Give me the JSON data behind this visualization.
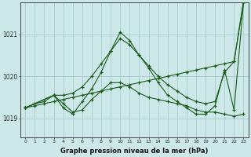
{
  "title": "Graphe pression niveau de la mer (hPa)",
  "background_color": "#cce8e8",
  "grid_color": "#aacccc",
  "line_color": "#1a5c1a",
  "xlim": [
    -0.5,
    23.5
  ],
  "ylim": [
    1018.55,
    1021.75
  ],
  "yticks": [
    1019,
    1020,
    1021
  ],
  "xticks": [
    0,
    1,
    2,
    3,
    4,
    5,
    6,
    7,
    8,
    9,
    10,
    11,
    12,
    13,
    14,
    15,
    16,
    17,
    18,
    19,
    20,
    21,
    22,
    23
  ],
  "series1_x": [
    0,
    1,
    2,
    3,
    4,
    5,
    6,
    7,
    8,
    9,
    10,
    11,
    12,
    13,
    14,
    15,
    16,
    17,
    18,
    19,
    20,
    21,
    22,
    23
  ],
  "series1_y": [
    1019.25,
    1019.3,
    1019.35,
    1019.4,
    1019.45,
    1019.5,
    1019.55,
    1019.6,
    1019.65,
    1019.7,
    1019.75,
    1019.8,
    1019.85,
    1019.9,
    1019.95,
    1020.0,
    1020.05,
    1020.1,
    1020.15,
    1020.2,
    1020.25,
    1020.3,
    1020.35,
    1021.75
  ],
  "series2_x": [
    0,
    3,
    4,
    5,
    6,
    7,
    8,
    9,
    10,
    11,
    12,
    13,
    14,
    15,
    16,
    17,
    18,
    19,
    20,
    21,
    22,
    23
  ],
  "series2_y": [
    1019.25,
    1019.55,
    1019.25,
    1019.1,
    1019.4,
    1019.7,
    1020.1,
    1020.6,
    1021.05,
    1020.85,
    1020.5,
    1020.2,
    1019.85,
    1019.55,
    1019.4,
    1019.25,
    1019.1,
    1019.1,
    1019.3,
    1020.15,
    1019.2,
    1021.75
  ],
  "series3_x": [
    0,
    1,
    2,
    3,
    4,
    5,
    6,
    7,
    8,
    9,
    10,
    11,
    12,
    13,
    14,
    15,
    16,
    17,
    18,
    19,
    20,
    21,
    22,
    23
  ],
  "series3_y": [
    1019.25,
    1019.35,
    1019.4,
    1019.55,
    1019.35,
    1019.15,
    1019.2,
    1019.45,
    1019.65,
    1019.85,
    1019.85,
    1019.75,
    1019.6,
    1019.5,
    1019.45,
    1019.4,
    1019.35,
    1019.3,
    1019.2,
    1019.15,
    1019.15,
    1019.1,
    1019.05,
    1019.1
  ],
  "series4_x": [
    0,
    3,
    4,
    5,
    6,
    7,
    8,
    9,
    10,
    11,
    12,
    13,
    14,
    15,
    16,
    17,
    18,
    19,
    20,
    21,
    22,
    23
  ],
  "series4_y": [
    1019.25,
    1019.55,
    1019.55,
    1019.6,
    1019.75,
    1020.0,
    1020.3,
    1020.6,
    1020.9,
    1020.75,
    1020.5,
    1020.25,
    1020.0,
    1019.8,
    1019.65,
    1019.5,
    1019.4,
    1019.35,
    1019.4,
    1020.1,
    1020.35,
    1021.8
  ]
}
